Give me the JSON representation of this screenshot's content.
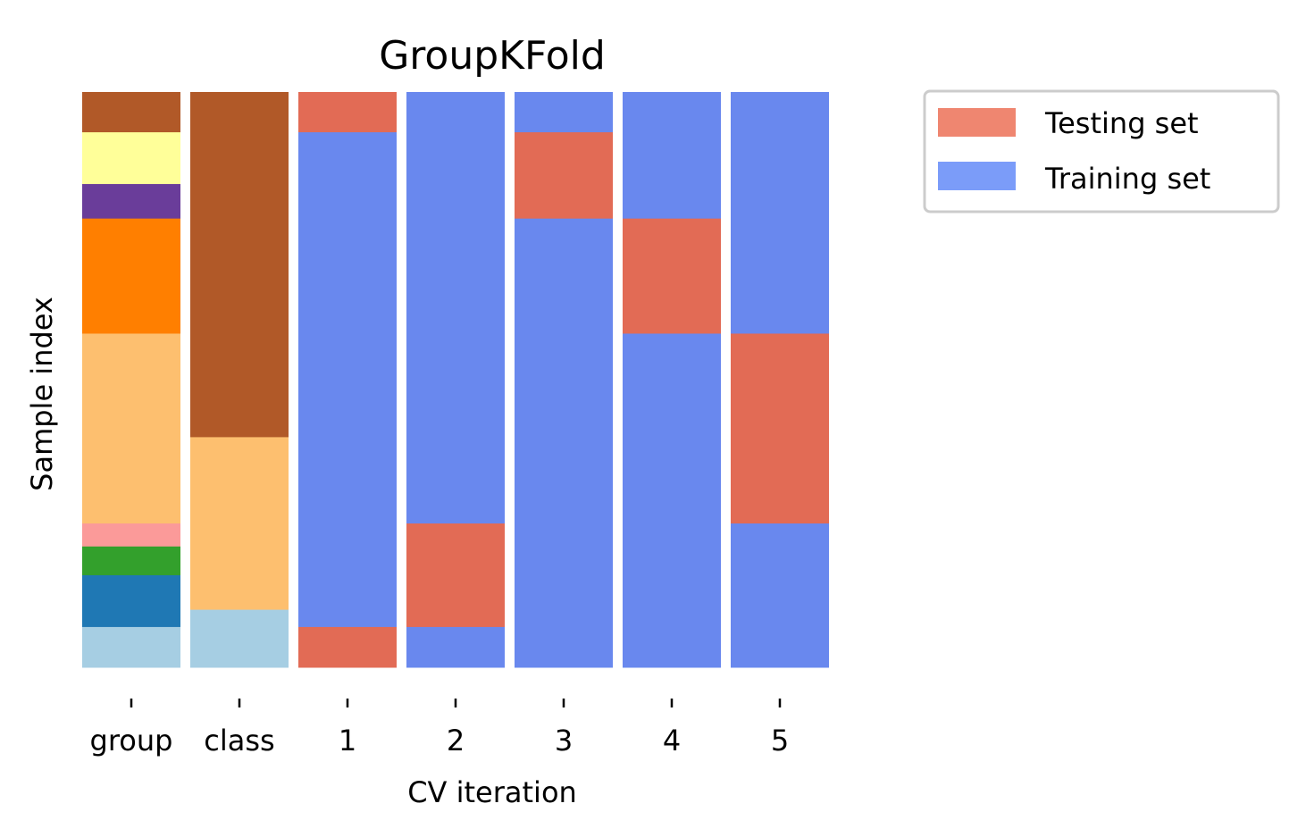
{
  "chart_data": {
    "type": "heatmap",
    "title": "GroupKFold",
    "xlabel": "CV iteration",
    "ylabel": "Sample index",
    "n_samples": 100,
    "columns": [
      {
        "label": "group",
        "segments": [
          {
            "start": 0,
            "end": 7,
            "color": "#b15928"
          },
          {
            "start": 7,
            "end": 16,
            "color": "#ffff99"
          },
          {
            "start": 16,
            "end": 22,
            "color": "#6a3d9a"
          },
          {
            "start": 22,
            "end": 42,
            "color": "#ff7f00"
          },
          {
            "start": 42,
            "end": 75,
            "color": "#fdbf6f"
          },
          {
            "start": 75,
            "end": 79,
            "color": "#fb9a99"
          },
          {
            "start": 79,
            "end": 84,
            "color": "#33a02c"
          },
          {
            "start": 84,
            "end": 93,
            "color": "#1f78b4"
          },
          {
            "start": 93,
            "end": 100,
            "color": "#a6cee3"
          }
        ]
      },
      {
        "label": "class",
        "segments": [
          {
            "start": 0,
            "end": 60,
            "color": "#b15928"
          },
          {
            "start": 60,
            "end": 90,
            "color": "#fdbf6f"
          },
          {
            "start": 90,
            "end": 100,
            "color": "#a6cee3"
          }
        ]
      },
      {
        "label": "1",
        "segments": [
          {
            "start": 0,
            "end": 7,
            "set": "test"
          },
          {
            "start": 7,
            "end": 93,
            "set": "train"
          },
          {
            "start": 93,
            "end": 100,
            "set": "test"
          }
        ]
      },
      {
        "label": "2",
        "segments": [
          {
            "start": 0,
            "end": 75,
            "set": "train"
          },
          {
            "start": 75,
            "end": 93,
            "set": "test"
          },
          {
            "start": 93,
            "end": 100,
            "set": "train"
          }
        ]
      },
      {
        "label": "3",
        "segments": [
          {
            "start": 0,
            "end": 7,
            "set": "train"
          },
          {
            "start": 7,
            "end": 22,
            "set": "test"
          },
          {
            "start": 22,
            "end": 100,
            "set": "train"
          }
        ]
      },
      {
        "label": "4",
        "segments": [
          {
            "start": 0,
            "end": 22,
            "set": "train"
          },
          {
            "start": 22,
            "end": 42,
            "set": "test"
          },
          {
            "start": 42,
            "end": 100,
            "set": "train"
          }
        ]
      },
      {
        "label": "5",
        "segments": [
          {
            "start": 0,
            "end": 42,
            "set": "train"
          },
          {
            "start": 42,
            "end": 75,
            "set": "test"
          },
          {
            "start": 75,
            "end": 100,
            "set": "train"
          }
        ]
      }
    ],
    "colors": {
      "test_cell": "#e26b55",
      "train_cell": "#6988ee",
      "test_legend": "#ef8670",
      "train_legend": "#7b9cf9"
    },
    "legend": {
      "placement": "outside-top-right",
      "entries": [
        {
          "label": "Testing set",
          "set": "test"
        },
        {
          "label": "Training set",
          "set": "train"
        }
      ]
    }
  }
}
